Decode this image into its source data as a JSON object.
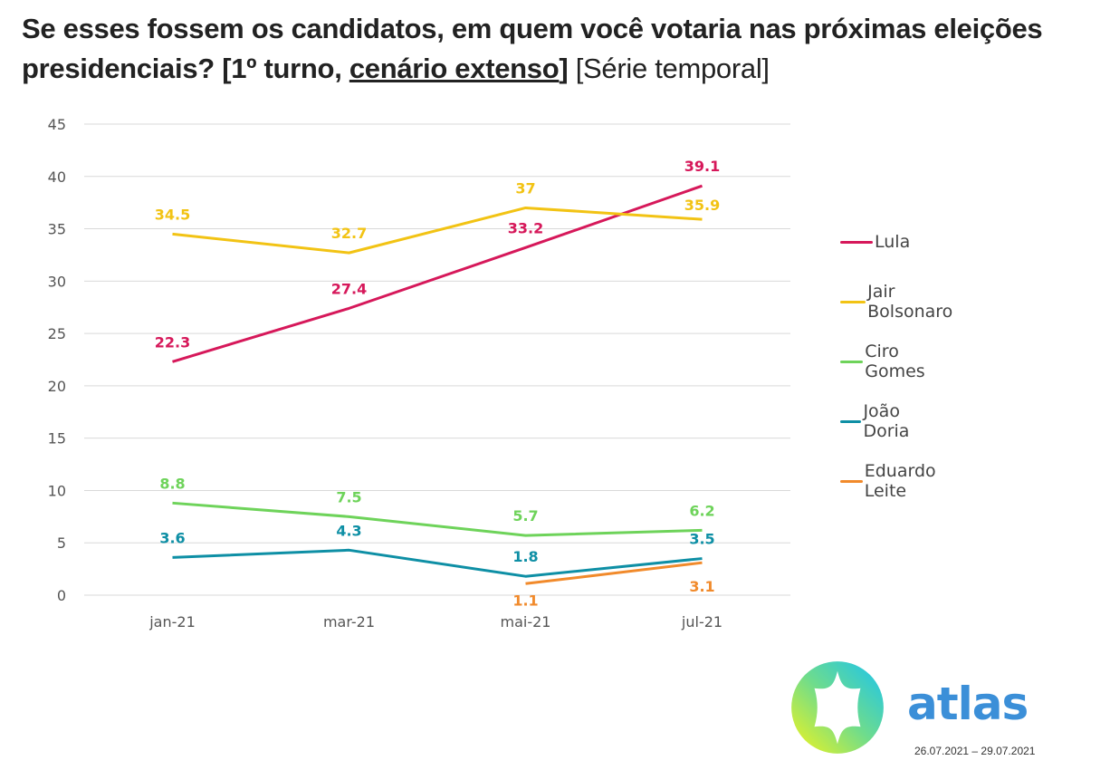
{
  "title": {
    "part1": "Se esses fossem os candidatos, em quem você votaria nas próximas eleições presidenciais? [1º turno, ",
    "underlined": "cenário extenso",
    "part2": "]",
    "part3": " [Série temporal]"
  },
  "chart_data": {
    "type": "line",
    "title": "Se esses fossem os candidatos, em quem você votaria nas próximas eleições presidenciais? [1º turno, cenário extenso] [Série temporal]",
    "xlabel": "",
    "ylabel": "",
    "categories": [
      "jan-21",
      "mar-21",
      "mai-21",
      "jul-21"
    ],
    "ylim": [
      0,
      45
    ],
    "yticks": [
      0,
      5,
      10,
      15,
      20,
      25,
      30,
      35,
      40,
      45
    ],
    "grid": true,
    "legend_position": "right",
    "series": [
      {
        "name": "Lula",
        "color": "#d6185a",
        "values": [
          22.3,
          27.4,
          33.2,
          39.1
        ],
        "labels": [
          "22.3",
          "27.4",
          "33.2",
          "39.1"
        ]
      },
      {
        "name": "Jair Bolsonaro",
        "color": "#f2c314",
        "values": [
          34.5,
          32.7,
          37,
          35.9
        ],
        "labels": [
          "34.5",
          "32.7",
          "37",
          "35.9"
        ]
      },
      {
        "name": "Ciro Gomes",
        "color": "#6ed35a",
        "values": [
          8.8,
          7.5,
          5.7,
          6.2
        ],
        "labels": [
          "8.8",
          "7.5",
          "5.7",
          "6.2"
        ]
      },
      {
        "name": "João Doria",
        "color": "#0e8fa5",
        "values": [
          3.6,
          4.3,
          1.8,
          3.5
        ],
        "labels": [
          "3.6",
          "4.3",
          "1.8",
          "3.5"
        ]
      },
      {
        "name": "Eduardo Leite",
        "color": "#f18a2b",
        "values": [
          null,
          null,
          1.1,
          3.1
        ],
        "labels": [
          null,
          null,
          "1.1",
          "3.1"
        ]
      }
    ]
  },
  "footer": {
    "brand": "atlas",
    "dates": "26.07.2021 – 29.07.2021",
    "brand_color": "#3b8fd8"
  }
}
